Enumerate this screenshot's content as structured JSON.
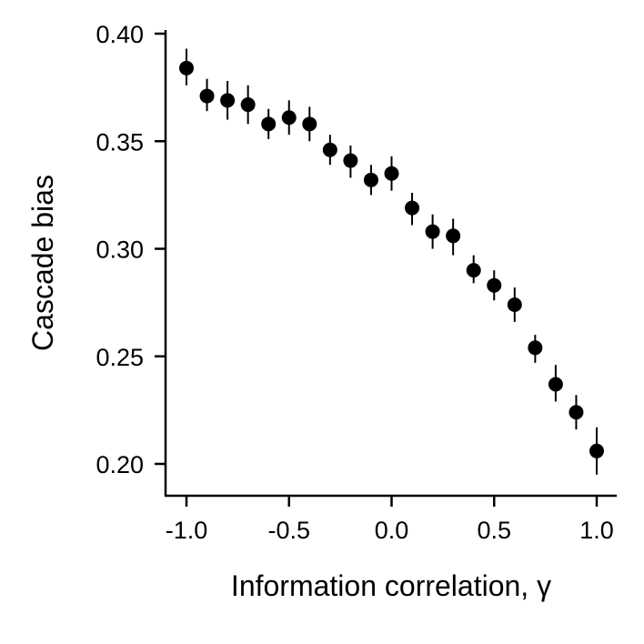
{
  "chart_data": {
    "type": "scatter",
    "title": "",
    "xlabel": "Information correlation, γ",
    "ylabel": "Cascade bias",
    "xlim": [
      -1.1,
      1.1
    ],
    "ylim": [
      0.185,
      0.402
    ],
    "x_ticks": [
      -1.0,
      -0.5,
      0.0,
      0.5,
      1.0
    ],
    "x_tick_labels": [
      "-1.0",
      "-0.5",
      "0.0",
      "0.5",
      "1.0"
    ],
    "y_ticks": [
      0.2,
      0.25,
      0.3,
      0.35,
      0.4
    ],
    "y_tick_labels": [
      "0.20",
      "0.25",
      "0.30",
      "0.35",
      "0.40"
    ],
    "grid": false,
    "legend": "none",
    "marker_color": "#000000",
    "series": [
      {
        "x": [
          -1.0,
          -0.9,
          -0.8,
          -0.7,
          -0.6,
          -0.5,
          -0.4,
          -0.3,
          -0.2,
          -0.1,
          0.0,
          0.1,
          0.2,
          0.3,
          0.4,
          0.5,
          0.6,
          0.7,
          0.8,
          0.9,
          1.0
        ],
        "y": [
          0.384,
          0.371,
          0.369,
          0.367,
          0.358,
          0.361,
          0.358,
          0.346,
          0.341,
          0.332,
          0.335,
          0.319,
          0.308,
          0.306,
          0.29,
          0.283,
          0.274,
          0.254,
          0.237,
          0.224,
          0.206
        ],
        "error_low": [
          0.376,
          0.364,
          0.36,
          0.358,
          0.351,
          0.353,
          0.35,
          0.339,
          0.333,
          0.325,
          0.327,
          0.311,
          0.3,
          0.297,
          0.284,
          0.276,
          0.266,
          0.247,
          0.229,
          0.216,
          0.195
        ],
        "error_high": [
          0.393,
          0.379,
          0.378,
          0.376,
          0.365,
          0.369,
          0.366,
          0.353,
          0.348,
          0.339,
          0.343,
          0.326,
          0.316,
          0.314,
          0.297,
          0.29,
          0.282,
          0.26,
          0.246,
          0.232,
          0.217
        ]
      }
    ]
  }
}
